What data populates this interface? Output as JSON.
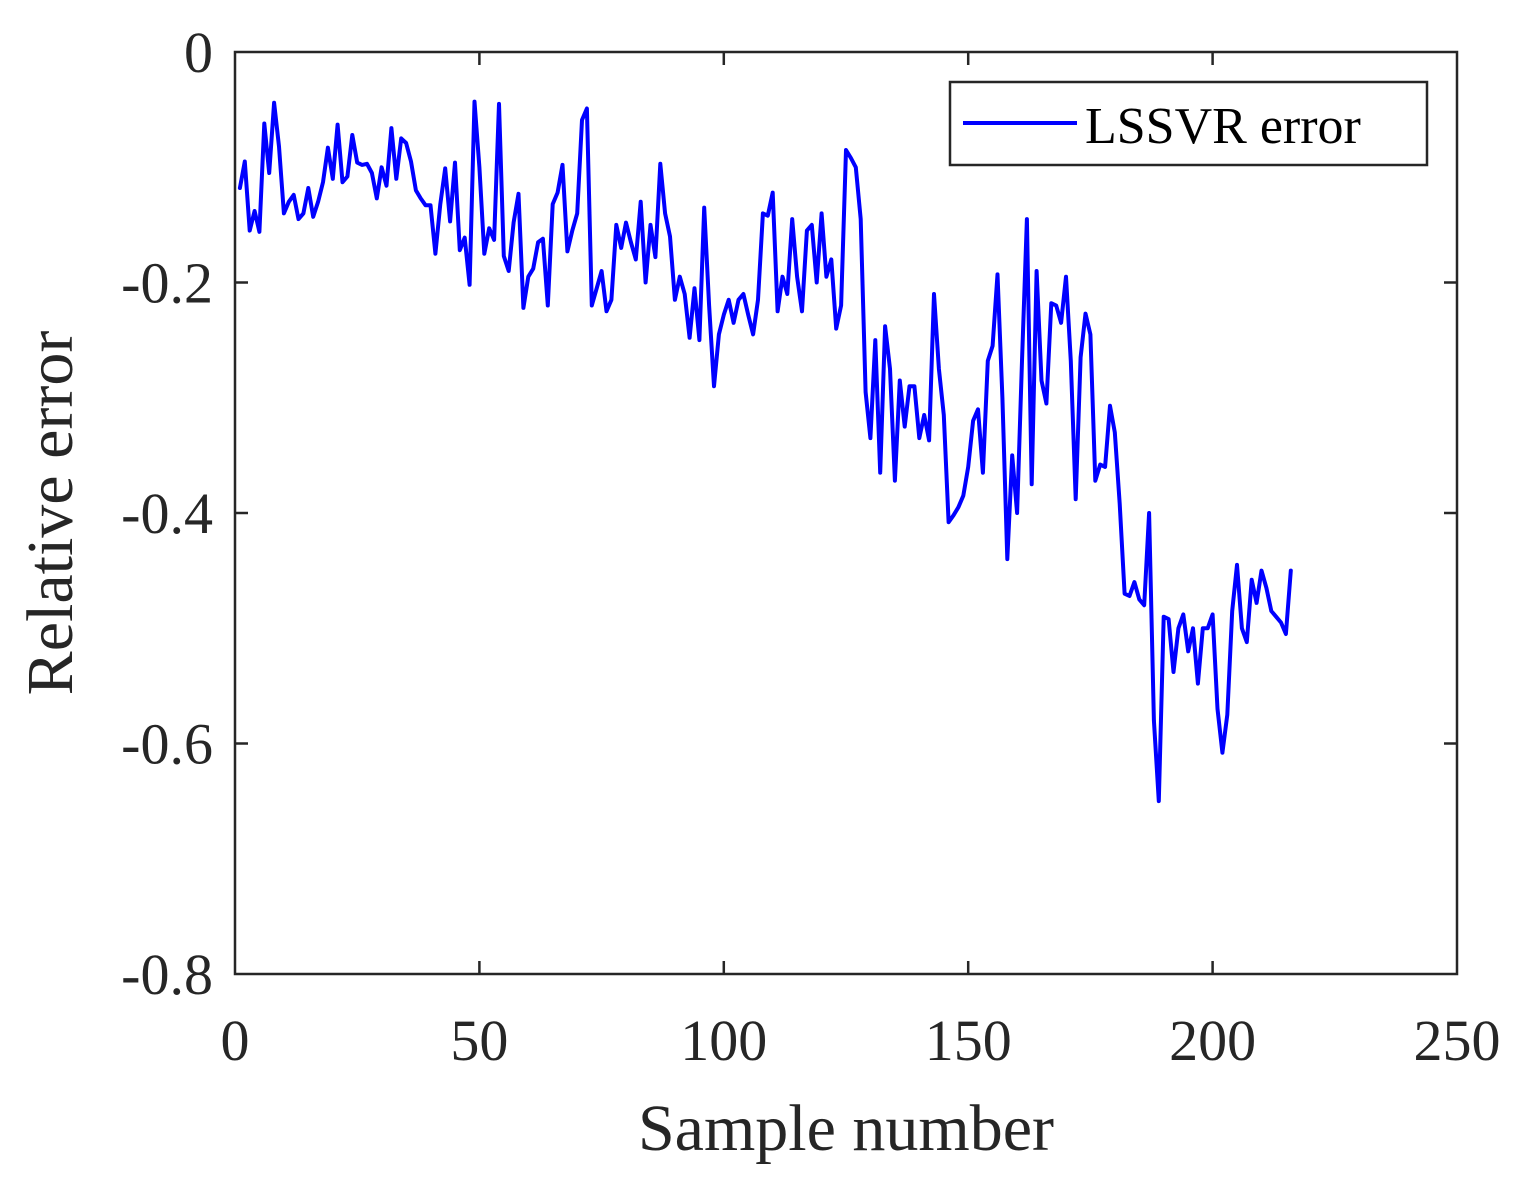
{
  "chart_data": {
    "type": "line",
    "title": "",
    "xlabel": "Sample number",
    "ylabel": "Relative error",
    "xlim": [
      0,
      250
    ],
    "ylim": [
      -0.8,
      0
    ],
    "xticks": [
      0,
      50,
      100,
      150,
      200,
      250
    ],
    "yticks": [
      0,
      -0.2,
      -0.4,
      -0.6,
      -0.8
    ],
    "xtick_labels": [
      "0",
      "50",
      "100",
      "150",
      "200",
      "250"
    ],
    "ytick_labels": [
      "0",
      "-0.2",
      "-0.4",
      "-0.6",
      "-0.8"
    ],
    "grid": false,
    "legend_position": "top-right",
    "series": [
      {
        "name": "LSSVR error",
        "color": "#0000ff",
        "x": [
          1,
          2,
          3,
          4,
          5,
          6,
          7,
          8,
          9,
          10,
          11,
          12,
          13,
          14,
          15,
          16,
          17,
          18,
          19,
          20,
          21,
          22,
          23,
          24,
          25,
          26,
          27,
          28,
          29,
          30,
          31,
          32,
          33,
          34,
          35,
          36,
          37,
          38,
          39,
          40,
          41,
          42,
          43,
          44,
          45,
          46,
          47,
          48,
          49,
          50,
          51,
          52,
          53,
          54,
          55,
          56,
          57,
          58,
          59,
          60,
          61,
          62,
          63,
          64,
          65,
          66,
          67,
          68,
          69,
          70,
          71,
          72,
          73,
          74,
          75,
          76,
          77,
          78,
          79,
          80,
          81,
          82,
          83,
          84,
          85,
          86,
          87,
          88,
          89,
          90,
          91,
          92,
          93,
          94,
          95,
          96,
          97,
          98,
          99,
          100,
          101,
          102,
          103,
          104,
          105,
          106,
          107,
          108,
          109,
          110,
          111,
          112,
          113,
          114,
          115,
          116,
          117,
          118,
          119,
          120,
          121,
          122,
          123,
          124,
          125,
          126,
          127,
          128,
          129,
          130,
          131,
          132,
          133,
          134,
          135,
          136,
          137,
          138,
          139,
          140,
          141,
          142,
          143,
          144,
          145,
          146,
          147,
          148,
          149,
          150,
          151,
          152,
          153,
          154,
          155,
          156,
          157,
          158,
          159,
          160,
          161,
          162,
          163,
          164,
          165,
          166,
          167,
          168,
          169,
          170,
          171,
          172,
          173,
          174,
          175,
          176,
          177,
          178,
          179,
          180,
          181,
          182,
          183,
          184,
          185,
          186,
          187,
          188,
          189,
          190,
          191,
          192,
          193,
          194,
          195,
          196,
          197,
          198,
          199,
          200,
          201,
          202,
          203,
          204,
          205,
          206,
          207,
          208,
          209,
          210,
          211,
          212,
          213,
          214,
          215,
          216
        ],
        "y": [
          -0.118,
          -0.095,
          -0.155,
          -0.138,
          -0.156,
          -0.062,
          -0.105,
          -0.044,
          -0.082,
          -0.14,
          -0.13,
          -0.124,
          -0.145,
          -0.14,
          -0.118,
          -0.143,
          -0.13,
          -0.113,
          -0.083,
          -0.11,
          -0.063,
          -0.113,
          -0.108,
          -0.072,
          -0.096,
          -0.098,
          -0.097,
          -0.105,
          -0.127,
          -0.1,
          -0.116,
          -0.066,
          -0.11,
          -0.075,
          -0.079,
          -0.095,
          -0.12,
          -0.127,
          -0.133,
          -0.133,
          -0.175,
          -0.132,
          -0.101,
          -0.147,
          -0.096,
          -0.172,
          -0.161,
          -0.202,
          -0.043,
          -0.1,
          -0.175,
          -0.153,
          -0.163,
          -0.045,
          -0.177,
          -0.19,
          -0.148,
          -0.123,
          -0.222,
          -0.195,
          -0.188,
          -0.165,
          -0.162,
          -0.22,
          -0.132,
          -0.122,
          -0.098,
          -0.173,
          -0.155,
          -0.14,
          -0.059,
          -0.049,
          -0.22,
          -0.205,
          -0.19,
          -0.225,
          -0.215,
          -0.15,
          -0.17,
          -0.148,
          -0.165,
          -0.18,
          -0.13,
          -0.2,
          -0.15,
          -0.178,
          -0.097,
          -0.14,
          -0.16,
          -0.215,
          -0.195,
          -0.21,
          -0.248,
          -0.205,
          -0.25,
          -0.135,
          -0.22,
          -0.29,
          -0.245,
          -0.228,
          -0.215,
          -0.235,
          -0.215,
          -0.21,
          -0.228,
          -0.245,
          -0.215,
          -0.14,
          -0.142,
          -0.122,
          -0.225,
          -0.195,
          -0.21,
          -0.145,
          -0.195,
          -0.225,
          -0.155,
          -0.15,
          -0.2,
          -0.14,
          -0.195,
          -0.18,
          -0.24,
          -0.22,
          -0.085,
          -0.092,
          -0.1,
          -0.145,
          -0.295,
          -0.335,
          -0.25,
          -0.365,
          -0.238,
          -0.275,
          -0.372,
          -0.285,
          -0.325,
          -0.29,
          -0.29,
          -0.335,
          -0.315,
          -0.337,
          -0.21,
          -0.275,
          -0.315,
          -0.408,
          -0.402,
          -0.395,
          -0.385,
          -0.36,
          -0.32,
          -0.31,
          -0.365,
          -0.268,
          -0.255,
          -0.193,
          -0.3,
          -0.44,
          -0.35,
          -0.4,
          -0.268,
          -0.145,
          -0.375,
          -0.19,
          -0.285,
          -0.305,
          -0.218,
          -0.22,
          -0.235,
          -0.195,
          -0.268,
          -0.388,
          -0.265,
          -0.227,
          -0.245,
          -0.372,
          -0.358,
          -0.36,
          -0.307,
          -0.33,
          -0.392,
          -0.47,
          -0.472,
          -0.46,
          -0.475,
          -0.48,
          -0.4,
          -0.58,
          -0.65,
          -0.49,
          -0.492,
          -0.538,
          -0.5,
          -0.488,
          -0.52,
          -0.5,
          -0.548,
          -0.5,
          -0.5,
          -0.488,
          -0.57,
          -0.608,
          -0.575,
          -0.485,
          -0.445,
          -0.5,
          -0.512,
          -0.458,
          -0.478,
          -0.45,
          -0.465,
          -0.485,
          -0.49,
          -0.495,
          -0.505,
          -0.45
        ]
      }
    ]
  }
}
